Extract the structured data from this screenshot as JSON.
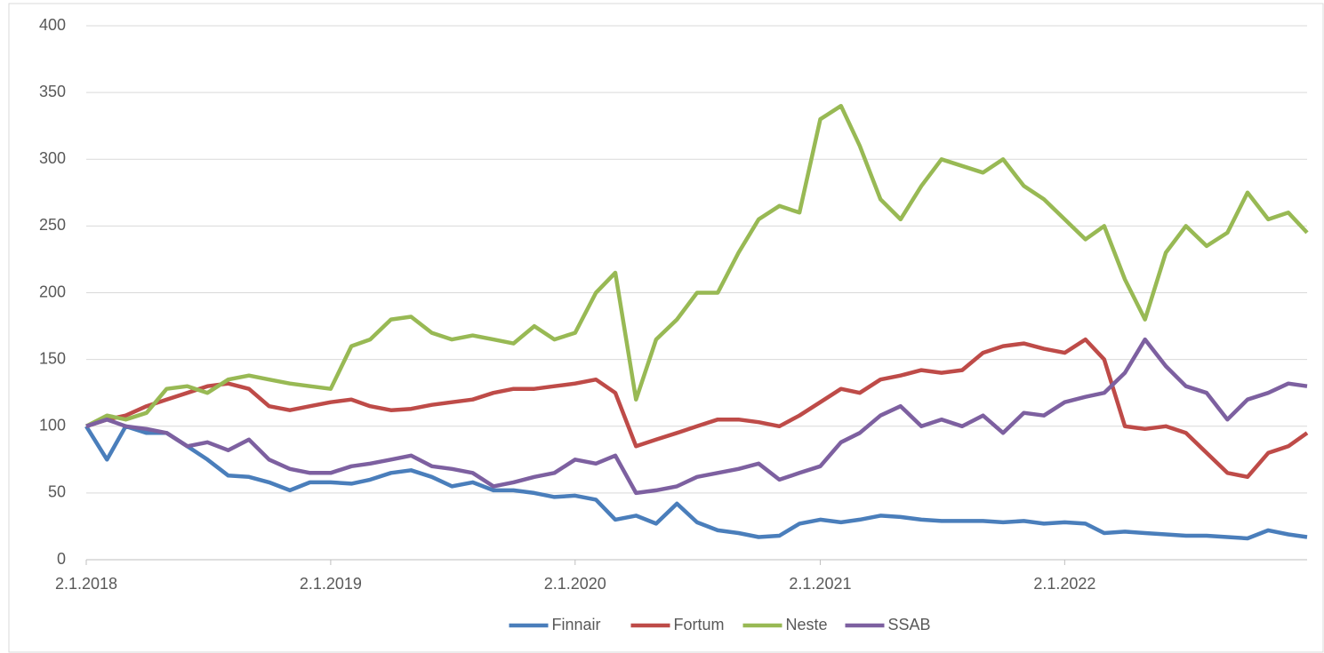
{
  "chart_data": {
    "type": "line",
    "x": [
      "2018-01-02",
      "2018-02-02",
      "2018-03-02",
      "2018-04-02",
      "2018-05-02",
      "2018-06-02",
      "2018-07-02",
      "2018-08-02",
      "2018-09-02",
      "2018-10-02",
      "2018-11-02",
      "2018-12-02",
      "2019-01-02",
      "2019-02-02",
      "2019-03-02",
      "2019-04-02",
      "2019-05-02",
      "2019-06-02",
      "2019-07-02",
      "2019-08-02",
      "2019-09-02",
      "2019-10-02",
      "2019-11-02",
      "2019-12-02",
      "2020-01-02",
      "2020-02-02",
      "2020-03-02",
      "2020-04-02",
      "2020-05-02",
      "2020-06-02",
      "2020-07-02",
      "2020-08-02",
      "2020-09-02",
      "2020-10-02",
      "2020-11-02",
      "2020-12-02",
      "2021-01-02",
      "2021-02-02",
      "2021-03-02",
      "2021-04-02",
      "2021-05-02",
      "2021-06-02",
      "2021-07-02",
      "2021-08-02",
      "2021-09-02",
      "2021-10-02",
      "2021-11-02",
      "2021-12-02",
      "2022-01-02",
      "2022-02-02",
      "2022-03-02",
      "2022-04-02",
      "2022-05-02",
      "2022-06-02",
      "2022-07-02",
      "2022-08-02",
      "2022-09-02",
      "2022-10-02",
      "2022-11-02",
      "2022-12-02",
      "2022-12-30"
    ],
    "series": [
      {
        "name": "Finnair",
        "color": "#4a7ebb",
        "values": [
          100,
          75,
          100,
          95,
          95,
          85,
          75,
          63,
          62,
          58,
          52,
          58,
          58,
          57,
          60,
          65,
          67,
          62,
          55,
          58,
          52,
          52,
          50,
          47,
          48,
          45,
          30,
          33,
          27,
          42,
          28,
          22,
          20,
          17,
          18,
          27,
          30,
          28,
          30,
          33,
          32,
          30,
          29,
          29,
          29,
          28,
          29,
          27,
          28,
          27,
          20,
          21,
          20,
          19,
          18,
          18,
          17,
          16,
          22,
          19,
          17
        ]
      },
      {
        "name": "Fortum",
        "color": "#be4b48",
        "values": [
          100,
          105,
          108,
          115,
          120,
          125,
          130,
          132,
          128,
          115,
          112,
          115,
          118,
          120,
          115,
          112,
          113,
          116,
          118,
          120,
          125,
          128,
          128,
          130,
          132,
          135,
          125,
          85,
          90,
          95,
          100,
          105,
          105,
          103,
          100,
          108,
          118,
          128,
          125,
          135,
          138,
          142,
          140,
          142,
          155,
          160,
          162,
          158,
          155,
          165,
          150,
          100,
          98,
          100,
          95,
          80,
          65,
          62,
          80,
          85,
          95
        ]
      },
      {
        "name": "Neste",
        "color": "#98b954",
        "values": [
          100,
          108,
          105,
          110,
          128,
          130,
          125,
          135,
          138,
          135,
          132,
          130,
          128,
          160,
          165,
          180,
          182,
          170,
          165,
          168,
          165,
          162,
          175,
          165,
          170,
          200,
          215,
          120,
          165,
          180,
          200,
          200,
          230,
          255,
          265,
          260,
          330,
          340,
          310,
          270,
          255,
          280,
          300,
          295,
          290,
          300,
          280,
          270,
          255,
          240,
          250,
          210,
          180,
          230,
          250,
          235,
          245,
          275,
          255,
          260,
          245
        ]
      },
      {
        "name": "SSAB",
        "color": "#7d60a0",
        "values": [
          100,
          105,
          100,
          98,
          95,
          85,
          88,
          82,
          90,
          75,
          68,
          65,
          65,
          70,
          72,
          75,
          78,
          70,
          68,
          65,
          55,
          58,
          62,
          65,
          75,
          72,
          78,
          50,
          52,
          55,
          62,
          65,
          68,
          72,
          60,
          65,
          70,
          88,
          95,
          108,
          115,
          100,
          105,
          100,
          108,
          95,
          110,
          108,
          118,
          122,
          125,
          140,
          165,
          145,
          130,
          125,
          105,
          120,
          125,
          132,
          130
        ]
      }
    ],
    "xlim": [
      "2018-01-02",
      "2022-12-30"
    ],
    "xticks": [
      {
        "value": "2018-01-02",
        "label": "2.1.2018"
      },
      {
        "value": "2019-01-02",
        "label": "2.1.2019"
      },
      {
        "value": "2020-01-02",
        "label": "2.1.2020"
      },
      {
        "value": "2021-01-02",
        "label": "2.1.2021"
      },
      {
        "value": "2022-01-02",
        "label": "2.1.2022"
      }
    ],
    "ylim": [
      0,
      400
    ],
    "yticks": [
      0,
      50,
      100,
      150,
      200,
      250,
      300,
      350,
      400
    ],
    "grid": true,
    "legend": "bottom"
  }
}
